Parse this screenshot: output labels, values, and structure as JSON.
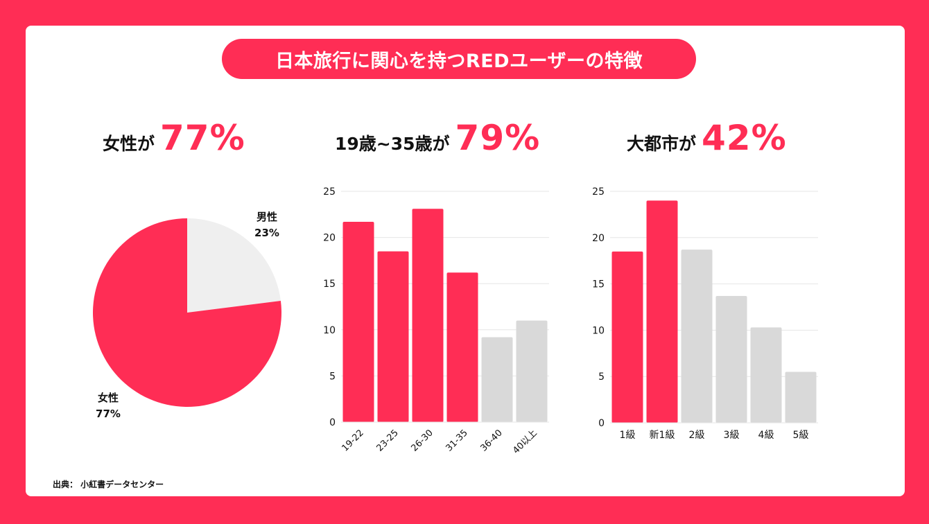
{
  "title": "日本旅行に関心を持つREDユーザーの特徴",
  "source": "出典： 小紅書データセンター",
  "colors": {
    "accent": "#ff2d55",
    "muted": "#d9d9d9",
    "pie_muted": "#efefef"
  },
  "headlines": [
    {
      "label": "女性が",
      "value": "77%"
    },
    {
      "label": "19歳~35歳が",
      "value": "79%"
    },
    {
      "label": "大都市が",
      "value": "42%"
    }
  ],
  "chart_data": [
    {
      "type": "pie",
      "slices": [
        {
          "label": "女性",
          "pct_label": "77%",
          "value": 77,
          "highlight": true
        },
        {
          "label": "男性",
          "pct_label": "23%",
          "value": 23,
          "highlight": false
        }
      ]
    },
    {
      "type": "bar",
      "categories": [
        "19-22",
        "23-25",
        "26-30",
        "31-35",
        "36-40",
        "40以上"
      ],
      "values": [
        21.7,
        18.5,
        23.1,
        16.2,
        9.2,
        11.0
      ],
      "highlight": [
        true,
        true,
        true,
        true,
        false,
        false
      ],
      "ylim": [
        0,
        25
      ],
      "yticks": [
        "0",
        "5",
        "10",
        "15",
        "20",
        "25"
      ],
      "grid": true,
      "x_labels_rotated": true
    },
    {
      "type": "bar",
      "categories": [
        "1級",
        "新1級",
        "2級",
        "3級",
        "4級",
        "5級"
      ],
      "values": [
        18.5,
        24.0,
        18.7,
        13.7,
        10.3,
        5.5
      ],
      "highlight": [
        true,
        true,
        false,
        false,
        false,
        false
      ],
      "ylim": [
        0,
        25
      ],
      "yticks": [
        "0",
        "5",
        "10",
        "15",
        "20",
        "25"
      ],
      "grid": true,
      "x_labels_rotated": false
    }
  ]
}
